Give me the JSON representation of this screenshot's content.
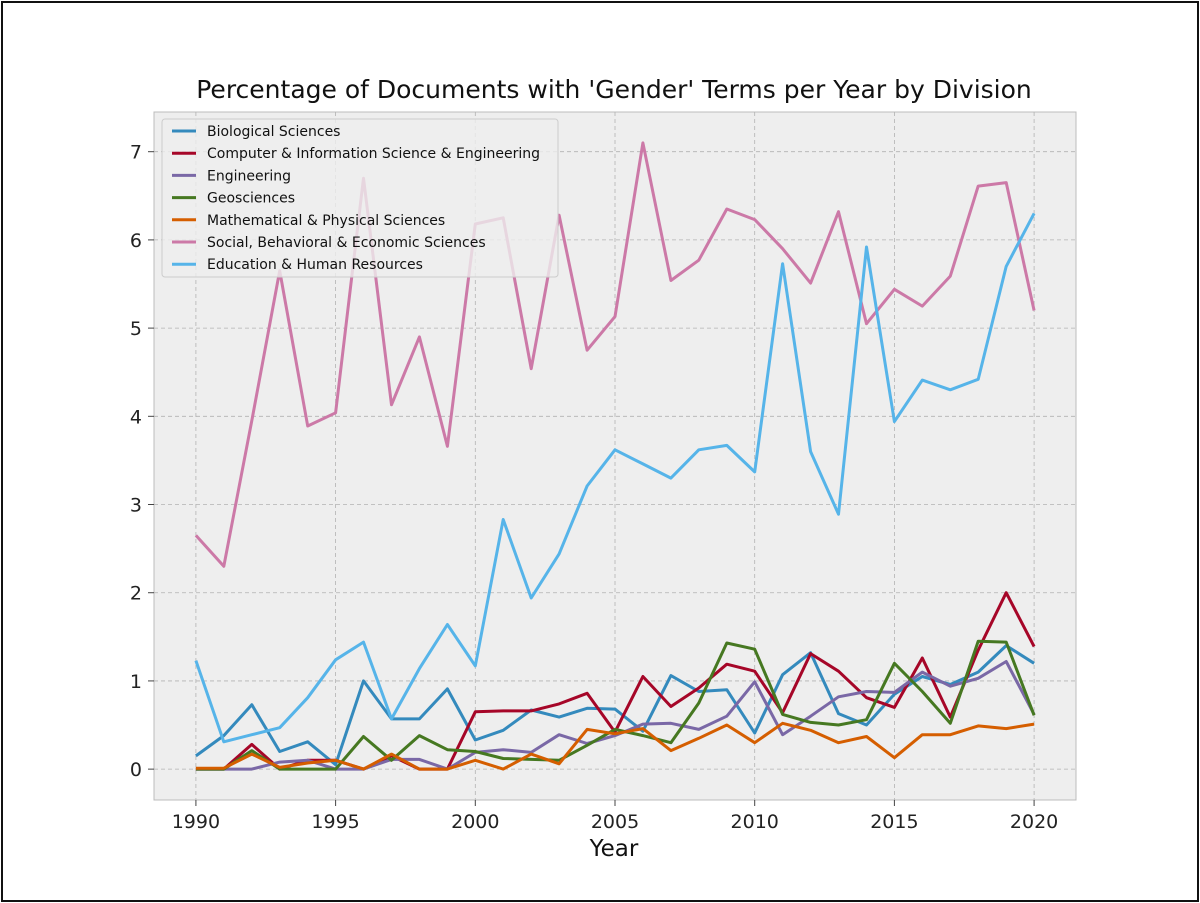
{
  "chart_data": {
    "type": "line",
    "title": "Percentage of Documents with 'Gender' Terms per Year by Division",
    "xlabel": "Year",
    "ylabel": "",
    "xlim": [
      1988.5,
      2021.5
    ],
    "ylim": [
      -0.35,
      7.45
    ],
    "xticks": [
      1990,
      1995,
      2000,
      2005,
      2010,
      2015,
      2020
    ],
    "yticks": [
      0,
      1,
      2,
      3,
      4,
      5,
      6,
      7
    ],
    "grid": true,
    "legend_position": "top-left",
    "x": [
      1990,
      1991,
      1992,
      1993,
      1994,
      1995,
      1996,
      1997,
      1998,
      1999,
      2000,
      2001,
      2002,
      2003,
      2004,
      2005,
      2006,
      2007,
      2008,
      2009,
      2010,
      2011,
      2012,
      2013,
      2014,
      2015,
      2016,
      2017,
      2018,
      2019,
      2020
    ],
    "series": [
      {
        "name": "Biological Sciences",
        "color": "#348ABD",
        "values": [
          0.15,
          0.38,
          0.73,
          0.2,
          0.31,
          0.05,
          1.0,
          0.57,
          0.57,
          0.91,
          0.33,
          0.44,
          0.67,
          0.59,
          0.69,
          0.68,
          0.43,
          1.06,
          0.88,
          0.9,
          0.41,
          1.07,
          1.32,
          0.63,
          0.5,
          0.85,
          1.05,
          0.96,
          1.1,
          1.4,
          1.2
        ]
      },
      {
        "name": "Computer & Information Science & Engineering",
        "color": "#A60628",
        "values": [
          0.0,
          0.0,
          0.28,
          0.0,
          0.1,
          0.1,
          0.0,
          0.15,
          0.0,
          0.0,
          0.65,
          0.66,
          0.66,
          0.74,
          0.86,
          0.42,
          1.05,
          0.71,
          0.92,
          1.19,
          1.11,
          0.64,
          1.31,
          1.11,
          0.81,
          0.7,
          1.26,
          0.59,
          1.35,
          2.0,
          1.39
        ]
      },
      {
        "name": "Engineering",
        "color": "#7A68A6",
        "values": [
          0.0,
          0.0,
          0.0,
          0.08,
          0.1,
          0.0,
          0.0,
          0.11,
          0.11,
          0.0,
          0.19,
          0.22,
          0.19,
          0.39,
          0.29,
          0.38,
          0.51,
          0.52,
          0.45,
          0.6,
          0.99,
          0.39,
          0.6,
          0.82,
          0.88,
          0.87,
          1.1,
          0.94,
          1.03,
          1.22,
          0.62
        ]
      },
      {
        "name": "Geosciences",
        "color": "#467821",
        "values": [
          0.0,
          0.0,
          0.21,
          0.0,
          0.0,
          0.0,
          0.37,
          0.1,
          0.38,
          0.22,
          0.2,
          0.12,
          0.11,
          0.1,
          0.27,
          0.45,
          0.38,
          0.3,
          0.75,
          1.43,
          1.36,
          0.62,
          0.53,
          0.5,
          0.56,
          1.2,
          0.88,
          0.52,
          1.45,
          1.44,
          0.61
        ]
      },
      {
        "name": "Mathematical & Physical Sciences",
        "color": "#D55E00",
        "values": [
          0.01,
          0.01,
          0.17,
          0.02,
          0.07,
          0.1,
          0.0,
          0.17,
          0.0,
          0.0,
          0.1,
          0.0,
          0.17,
          0.06,
          0.45,
          0.4,
          0.46,
          0.21,
          0.35,
          0.5,
          0.3,
          0.52,
          0.44,
          0.3,
          0.37,
          0.13,
          0.39,
          0.39,
          0.49,
          0.46,
          0.51
        ]
      },
      {
        "name": "Social, Behavioral & Economic Sciences",
        "color": "#CC79A7",
        "values": [
          2.65,
          2.3,
          3.95,
          5.65,
          3.89,
          4.04,
          6.7,
          4.13,
          4.9,
          3.66,
          6.18,
          6.25,
          4.54,
          6.28,
          4.75,
          5.13,
          7.1,
          5.54,
          5.77,
          6.35,
          6.23,
          5.9,
          5.51,
          6.32,
          5.05,
          5.44,
          5.25,
          5.59,
          6.61,
          6.65,
          5.2
        ]
      },
      {
        "name": "Education & Human Resources",
        "color": "#56B4E9",
        "values": [
          1.23,
          0.31,
          0.39,
          0.47,
          0.81,
          1.24,
          1.44,
          0.57,
          1.14,
          1.64,
          1.17,
          2.83,
          1.94,
          2.44,
          3.21,
          3.62,
          3.46,
          3.3,
          3.62,
          3.67,
          3.37,
          5.73,
          3.6,
          2.89,
          5.92,
          3.94,
          4.41,
          4.3,
          4.42,
          5.7,
          6.3
        ]
      }
    ]
  }
}
